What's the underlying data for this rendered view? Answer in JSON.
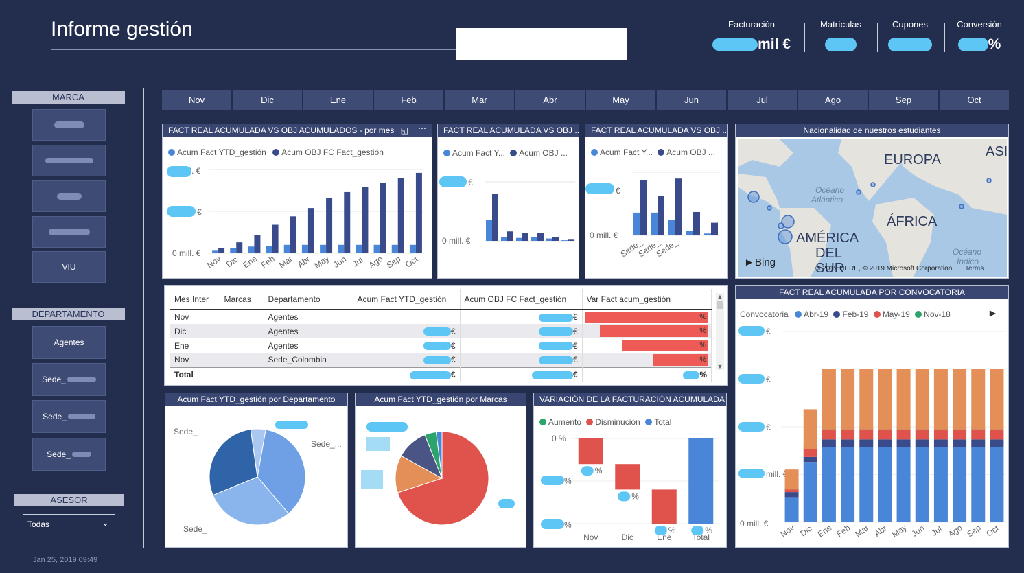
{
  "header": {
    "title": "Informe gestión"
  },
  "kpis": [
    {
      "label": "Facturación",
      "suffix": "mil €"
    },
    {
      "label": "Matrículas",
      "suffix": ""
    },
    {
      "label": "Cupones",
      "suffix": ""
    },
    {
      "label": "Conversión",
      "suffix": "%"
    }
  ],
  "slicers": {
    "marca": {
      "title": "MARCA",
      "items": [
        "",
        "",
        "",
        "",
        "VIU"
      ]
    },
    "departamento": {
      "title": "DEPARTAMENTO",
      "items": [
        "Agentes",
        "Sede_",
        "Sede_",
        "Sede_"
      ]
    },
    "asesor": {
      "title": "ASESOR",
      "value": "Todas"
    }
  },
  "months": [
    "Nov",
    "Dic",
    "Ene",
    "Feb",
    "Mar",
    "Abr",
    "May",
    "Jun",
    "Jul",
    "Ago",
    "Sep",
    "Oct"
  ],
  "chart1": {
    "title": "FACT REAL ACUMULADA VS OBJ ACUMULADOS - por mes",
    "legend": [
      "Acum Fact YTD_gestión",
      "Acum OBJ FC Fact_gestión"
    ],
    "y_ticks": [
      "mill. €",
      "€",
      "0 mill. €"
    ]
  },
  "chart2": {
    "title": "FACT REAL ACUMULADA VS OBJ ...",
    "legend": [
      "Acum Fact Y...",
      "Acum OBJ ..."
    ],
    "y_ticks": [
      "€",
      "0 mill. €"
    ]
  },
  "chart3": {
    "title": "FACT REAL ACUMULADA VS OBJ ...",
    "legend": [
      "Acum Fact Y...",
      "Acum OBJ ..."
    ],
    "y_ticks": [
      "€",
      "0 mill. €"
    ],
    "x_ticks": [
      "Sede_",
      "Sede_",
      "Sede_",
      ""
    ]
  },
  "map": {
    "title": "Nacionalidad de nuestros estudiantes",
    "labels": {
      "europa": "EUROPA",
      "asia": "ASI",
      "africa": "ÁFRICA",
      "america": "AMÉRICA",
      "del": "DEL",
      "sur": "SUR",
      "atl1": "Océano",
      "atl2": "Atlántico",
      "ind1": "Océano",
      "ind2": "Índico"
    },
    "bing": "Bing",
    "copyright": "© 2019 HERE, © 2019 Microsoft Corporation",
    "terms": "Terms"
  },
  "table": {
    "columns": [
      "Mes Inter",
      "Marcas",
      "Departamento",
      "Acum Fact YTD_gestión",
      "Acum OBJ FC Fact_gestión",
      "Var Fact acum_gestión"
    ],
    "rows": [
      {
        "mes": "Nov",
        "dep": "Agentes",
        "fact": "",
        "obj": "€",
        "var": "%"
      },
      {
        "mes": "Dic",
        "dep": "Agentes",
        "fact": "€",
        "obj": "€",
        "var": "%"
      },
      {
        "mes": "Ene",
        "dep": "Agentes",
        "fact": "€",
        "obj": "€",
        "var": "%"
      },
      {
        "mes": "Nov",
        "dep": "Sede_Colombia",
        "fact": "€",
        "obj": "€",
        "var": "%"
      }
    ],
    "total": {
      "label": "Total",
      "fact": "€",
      "obj": "€",
      "var": "%"
    }
  },
  "pie1": {
    "title": "Acum Fact YTD_gestión por Departamento",
    "labels": [
      "Sede_",
      "Sede_...",
      "Sede_",
      "Agentes"
    ]
  },
  "pie2": {
    "title": "Acum Fact YTD_gestión por Marcas"
  },
  "waterfall": {
    "title": "VARIACIÓN DE LA FACTURACIÓN ACUMULADA",
    "legend": [
      "Aumento",
      "Disminución",
      "Total"
    ],
    "y_ticks": [
      "0 %",
      "%",
      "%"
    ],
    "x_ticks": [
      "Nov",
      "Dic",
      "Ene",
      "Total"
    ],
    "labels": [
      "%",
      "%",
      "%",
      "%"
    ]
  },
  "convocatoria": {
    "title": "FACT REAL ACUMULADA POR CONVOCATORIA",
    "legend_title": "Convocatoria",
    "legend": [
      "Abr-19",
      "Feb-19",
      "May-19",
      "Nov-18"
    ],
    "y_ticks": [
      "€",
      "€",
      "€",
      "mill. €",
      "0 mill. €"
    ]
  },
  "colors": {
    "blue_light": "#4a86d8",
    "blue_dark": "#3a4b8c",
    "red": "#e0534d",
    "orange": "#e38f57",
    "green": "#2ca46b"
  },
  "chart_data": [
    {
      "type": "bar",
      "title": "FACT REAL ACUMULADA VS OBJ ACUMULADOS - por mes",
      "categories": [
        "Nov",
        "Dic",
        "Ene",
        "Feb",
        "Mar",
        "Abr",
        "May",
        "Jun",
        "Jul",
        "Ago",
        "Sep",
        "Oct"
      ],
      "series": [
        {
          "name": "Acum Fact YTD_gestión",
          "values": [
            0.3,
            0.6,
            0.8,
            0.9,
            1.0,
            1.0,
            1.0,
            1.0,
            1.0,
            1.0,
            1.0,
            1.0
          ]
        },
        {
          "name": "Acum OBJ FC Fact_gestión",
          "values": [
            0.6,
            1.3,
            2.2,
            3.4,
            4.4,
            5.4,
            6.6,
            7.3,
            7.9,
            8.4,
            9.0,
            9.6
          ]
        }
      ]
    },
    {
      "type": "bar",
      "title": "FACT REAL ACUMULADA VS OBJ ...",
      "categories": [
        "",
        "",
        "",
        "",
        "",
        ""
      ],
      "series": [
        {
          "name": "Acum Fact Y...",
          "values": [
            3.5,
            0.7,
            0.5,
            0.6,
            0.4,
            0.1
          ]
        },
        {
          "name": "Acum OBJ ...",
          "values": [
            8.0,
            1.6,
            1.3,
            1.3,
            0.6,
            0.2
          ]
        }
      ]
    },
    {
      "type": "bar",
      "title": "FACT REAL ACUMULADA VS OBJ ...",
      "categories": [
        "Sede_",
        "Sede_",
        "Sede_",
        "",
        ""
      ],
      "series": [
        {
          "name": "Acum Fact Y...",
          "values": [
            3.6,
            3.6,
            2.5,
            0.7,
            0.3
          ]
        },
        {
          "name": "Acum OBJ ...",
          "values": [
            8.8,
            6.2,
            9.0,
            3.7,
            2.0
          ]
        }
      ]
    },
    {
      "type": "pie",
      "title": "Acum Fact YTD_gestión por Departamento",
      "values": [
        36,
        30,
        29,
        5
      ]
    },
    {
      "type": "pie",
      "title": "Acum Fact YTD_gestión por Marcas",
      "values": [
        70,
        13,
        11,
        4,
        2
      ]
    },
    {
      "type": "bar",
      "title": "VARIACIÓN DE LA FACTURACIÓN ACUMULADA",
      "categories": [
        "Nov",
        "Dic",
        "Ene",
        "Total"
      ],
      "values": [
        -30,
        -60,
        -100,
        -100
      ]
    },
    {
      "type": "bar",
      "title": "FACT REAL ACUMULADA POR CONVOCATORIA",
      "categories": [
        "Nov",
        "Dic",
        "Ene",
        "Feb",
        "Mar",
        "Abr",
        "May",
        "Jun",
        "Jul",
        "Ago",
        "Sep",
        "Oct"
      ],
      "series": [
        {
          "name": "Abr-19",
          "values": [
            0.5,
            1.2,
            1.5,
            1.5,
            1.5,
            1.5,
            1.5,
            1.5,
            1.5,
            1.5,
            1.5,
            1.5
          ]
        },
        {
          "name": "Feb-19",
          "values": [
            0.1,
            0.1,
            0.15,
            0.15,
            0.15,
            0.15,
            0.15,
            0.15,
            0.15,
            0.15,
            0.15,
            0.15
          ]
        },
        {
          "name": "May-19",
          "values": [
            0.05,
            0.15,
            0.2,
            0.2,
            0.2,
            0.2,
            0.2,
            0.2,
            0.2,
            0.2,
            0.2,
            0.2
          ]
        },
        {
          "name": "Nov-18",
          "values": [
            0.4,
            0.8,
            1.2,
            1.2,
            1.2,
            1.2,
            1.2,
            1.2,
            1.2,
            1.2,
            1.2,
            1.2
          ]
        }
      ]
    }
  ],
  "footer": {
    "timestamp": "Jan 25, 2019 09:49"
  }
}
